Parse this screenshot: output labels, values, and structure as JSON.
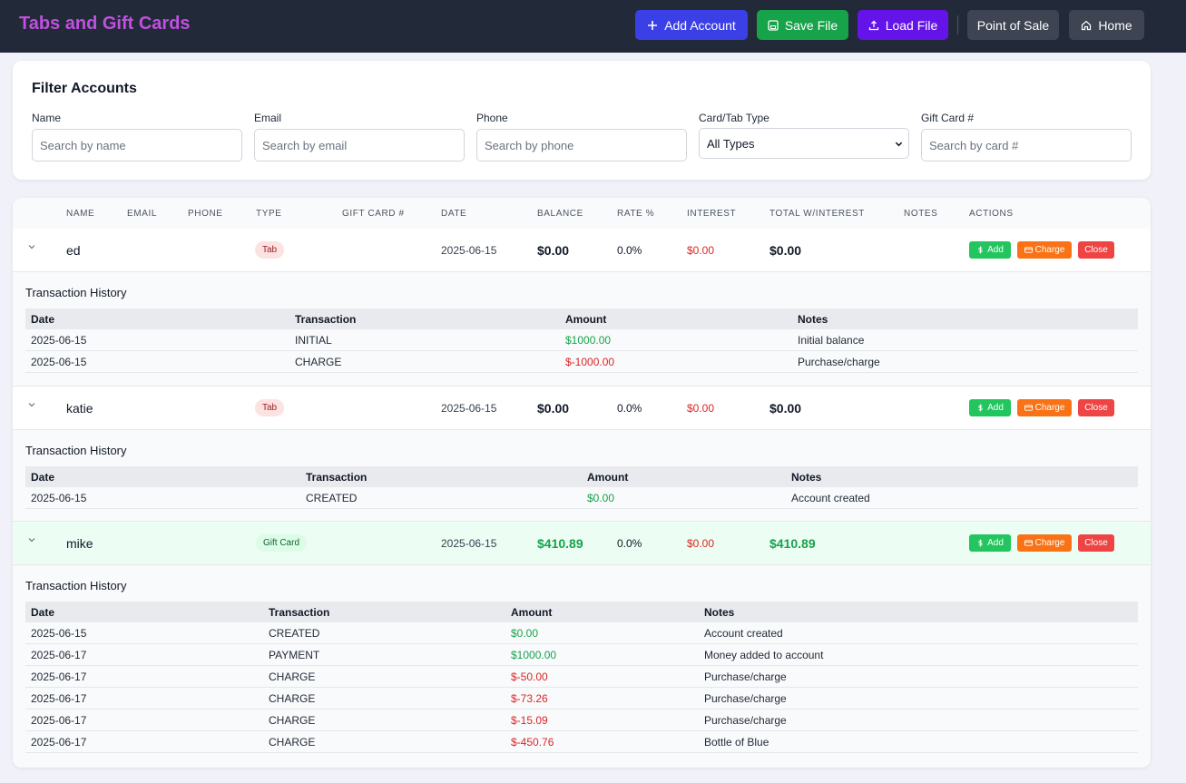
{
  "header": {
    "title": "Tabs and Gift Cards",
    "buttons": {
      "add_account": "Add Account",
      "save_file": "Save File",
      "load_file": "Load File",
      "point_of_sale": "Point of Sale",
      "home": "Home"
    }
  },
  "colors": {
    "header_bg": "#222938",
    "title": "#c050e0",
    "add_account": "#3b3fe6",
    "save": "#17a34a",
    "load": "#6414e8",
    "positive": "#16a34a",
    "negative": "#dc2626"
  },
  "filter": {
    "title": "Filter Accounts",
    "name": {
      "label": "Name",
      "placeholder": "Search by name"
    },
    "email": {
      "label": "Email",
      "placeholder": "Search by email"
    },
    "phone": {
      "label": "Phone",
      "placeholder": "Search by phone"
    },
    "type": {
      "label": "Card/Tab Type",
      "selected": "All Types"
    },
    "giftcard": {
      "label": "Gift Card #",
      "placeholder": "Search by card #"
    }
  },
  "table": {
    "columns": {
      "name": "NAME",
      "email": "EMAIL",
      "phone": "PHONE",
      "type": "TYPE",
      "giftcard": "GIFT CARD #",
      "date": "DATE",
      "balance": "BALANCE",
      "rate": "RATE %",
      "interest": "INTEREST",
      "total": "TOTAL W/INTEREST",
      "notes": "NOTES",
      "actions": "ACTIONS"
    },
    "action_labels": {
      "add": "Add",
      "charge": "Charge",
      "close": "Close"
    },
    "history_title": "Transaction History",
    "history_columns": {
      "date": "Date",
      "transaction": "Transaction",
      "amount": "Amount",
      "notes": "Notes"
    }
  },
  "accounts": [
    {
      "name": "ed",
      "type": "Tab",
      "date": "2025-06-15",
      "balance": "$0.00",
      "rate": "0.0%",
      "interest": "$0.00",
      "total": "$0.00",
      "transactions": [
        {
          "date": "2025-06-15",
          "transaction": "INITIAL",
          "amount": "$1000.00",
          "notes": "Initial balance"
        },
        {
          "date": "2025-06-15",
          "transaction": "CHARGE",
          "amount": "$-1000.00",
          "notes": "Purchase/charge"
        }
      ]
    },
    {
      "name": "katie",
      "type": "Tab",
      "date": "2025-06-15",
      "balance": "$0.00",
      "rate": "0.0%",
      "interest": "$0.00",
      "total": "$0.00",
      "transactions": [
        {
          "date": "2025-06-15",
          "transaction": "CREATED",
          "amount": "$0.00",
          "notes": "Account created"
        }
      ]
    },
    {
      "name": "mike",
      "type": "Gift Card",
      "date": "2025-06-15",
      "balance": "$410.89",
      "rate": "0.0%",
      "interest": "$0.00",
      "total": "$410.89",
      "transactions": [
        {
          "date": "2025-06-15",
          "transaction": "CREATED",
          "amount": "$0.00",
          "notes": "Account created"
        },
        {
          "date": "2025-06-17",
          "transaction": "PAYMENT",
          "amount": "$1000.00",
          "notes": "Money added to account"
        },
        {
          "date": "2025-06-17",
          "transaction": "CHARGE",
          "amount": "$-50.00",
          "notes": "Purchase/charge"
        },
        {
          "date": "2025-06-17",
          "transaction": "CHARGE",
          "amount": "$-73.26",
          "notes": "Purchase/charge"
        },
        {
          "date": "2025-06-17",
          "transaction": "CHARGE",
          "amount": "$-15.09",
          "notes": "Purchase/charge"
        },
        {
          "date": "2025-06-17",
          "transaction": "CHARGE",
          "amount": "$-450.76",
          "notes": "Bottle of Blue"
        }
      ]
    }
  ]
}
